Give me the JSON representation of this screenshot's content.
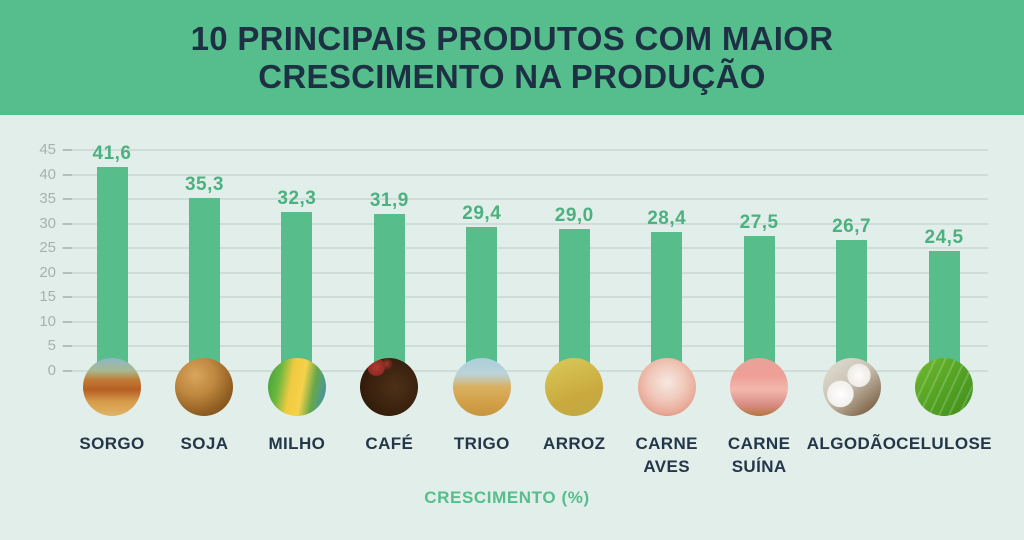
{
  "header": {
    "title_line1": "10 PRINCIPAIS PRODUTOS COM MAIOR",
    "title_line2": "CRESCIMENTO NA PRODUÇÃO"
  },
  "chart_data": {
    "type": "bar",
    "title": "10 PRINCIPAIS PRODUTOS COM MAIOR CRESCIMENTO NA PRODUÇÃO",
    "xlabel": "CRESCIMENTO (%)",
    "ylabel": "",
    "ylim": [
      0,
      45
    ],
    "yticks": [
      0,
      5,
      10,
      15,
      20,
      25,
      30,
      35,
      40,
      45
    ],
    "grid": true,
    "legend": false,
    "categories": [
      "SORGO",
      "SOJA",
      "MILHO",
      "CAFÉ",
      "TRIGO",
      "ARROZ",
      "CARNE AVES",
      "CARNE SUÍNA",
      "ALGODÃO",
      "CELULOSE"
    ],
    "values": [
      41.6,
      35.3,
      32.3,
      31.9,
      29.4,
      29.0,
      28.4,
      27.5,
      26.7,
      24.5
    ],
    "value_labels": [
      "41,6",
      "35,3",
      "32,3",
      "31,9",
      "29,4",
      "29,0",
      "28,4",
      "27,5",
      "26,7",
      "24,5"
    ]
  },
  "products": [
    {
      "id": "sorgo",
      "label_lines": [
        "SORGO"
      ],
      "icon": "sorghum-photo-icon",
      "photo_css": "linear-gradient(180deg,#8FB6CA 0%,#A8B98F 22%,#C17A35 38%,#B65F24 55%,#D79B4A 75%,#E0B468 100%)"
    },
    {
      "id": "soja",
      "label_lines": [
        "SOJA"
      ],
      "icon": "soybeans-photo-icon",
      "photo_css": "radial-gradient(circle at 35% 30%,#D9A55E 0%,#C08840 35%,#8F5D22 70%,#6E4417 100%)"
    },
    {
      "id": "milho",
      "label_lines": [
        "MILHO"
      ],
      "icon": "corn-photo-icon",
      "photo_css": "linear-gradient(100deg,#3D9E3F 0%,#6DB83F 22%,#F0CA41 40%,#F5D24A 58%,#67A84A 75%,#3C8FC0 100%)"
    },
    {
      "id": "cafe",
      "label_lines": [
        "CAFÉ"
      ],
      "icon": "coffee-beans-photo-icon",
      "photo_css": "radial-gradient(circle at 28% 16%,#B03A30 0%,#8E2B24 13%,rgba(0,0,0,0) 14%),radial-gradient(circle at 46% 10%,#A8362C 0%,rgba(0,0,0,0) 11%),radial-gradient(circle at 60% 50%,#4D3018 0%,#38200D 60%,#241204 100%)"
    },
    {
      "id": "trigo",
      "label_lines": [
        "TRIGO"
      ],
      "icon": "wheat-photo-icon",
      "photo_css": "linear-gradient(180deg,#A9CEDE 0%,#BCD3D8 28%,#D9B060 50%,#D2A149 75%,#C89540 100%)"
    },
    {
      "id": "arroz",
      "label_lines": [
        "ARROZ"
      ],
      "icon": "rice-photo-icon",
      "photo_css": "linear-gradient(160deg,#D9C95E 0%,#D1B94A 35%,#C9A93E 65%,#BFA944 100%)"
    },
    {
      "id": "carne-aves",
      "label_lines": [
        "CARNE",
        "AVES"
      ],
      "icon": "chicken-meat-photo-icon",
      "photo_css": "radial-gradient(circle at 50% 42%,#F6E8E0 0%,#F0C9BB 40%,#E8A896 70%,#A86845 100%)"
    },
    {
      "id": "carne-suina",
      "label_lines": [
        "CARNE",
        "SUÍNA"
      ],
      "icon": "pork-meat-photo-icon",
      "photo_css": "linear-gradient(180deg,#E8A39A 0%,#EF9F96 30%,#F3B7AD 55%,#D98D84 80%,#B5763F 100%)"
    },
    {
      "id": "algodao",
      "label_lines": [
        "ALGODÃO"
      ],
      "icon": "cotton-photo-icon",
      "photo_css": "radial-gradient(circle at 30% 62%,#FFFFFF 0%,#F2F0EC 24%,rgba(0,0,0,0) 25%),radial-gradient(circle at 62% 30%,#FDFDFB 0%,#EEEBE6 21%,rgba(0,0,0,0) 22%),linear-gradient(140deg,#E5E1D8 0%,#C9C2B4 45%,#6B4A2A 100%)"
    },
    {
      "id": "celulose",
      "label_lines": [
        "CELULOSE"
      ],
      "icon": "leaf-photo-icon",
      "photo_css": "repeating-linear-gradient(115deg,rgba(255,255,255,0.18) 0 2px,rgba(0,0,0,0) 2px 9px),linear-gradient(135deg,#71B92F 0%,#54A324 50%,#3F8D1A 100%)"
    }
  ],
  "colors": {
    "banner_green": "#55BE8C",
    "bar_green": "#57BE8B",
    "value_label_green": "#4BB180",
    "xlabel_green": "#55BE8C",
    "title_navy": "#1E3044",
    "category_navy": "#24364A",
    "background": "#E2EEE9",
    "tick_label_gray": "#A4B2B0",
    "gridline_gray": "#B4C6C0"
  }
}
